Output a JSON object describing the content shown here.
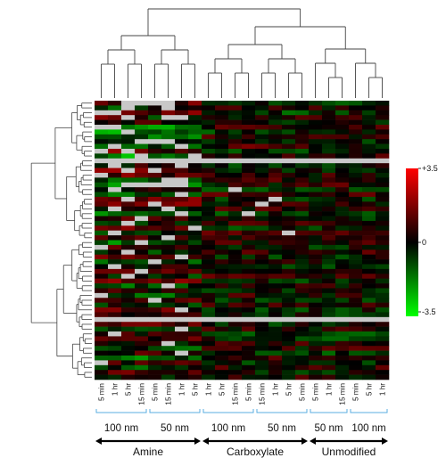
{
  "chart_data": {
    "type": "heatmap",
    "title": "",
    "n_rows": 58,
    "columns": [
      {
        "time": "5 min",
        "size": "100 nm",
        "surface": "Amine"
      },
      {
        "time": "1 hr",
        "size": "100 nm",
        "surface": "Amine"
      },
      {
        "time": "5 hr",
        "size": "100 nm",
        "surface": "Amine"
      },
      {
        "time": "15 min",
        "size": "100 nm",
        "surface": "Amine"
      },
      {
        "time": "5 min",
        "size": "50 nm",
        "surface": "Amine"
      },
      {
        "time": "15 min",
        "size": "50 nm",
        "surface": "Amine"
      },
      {
        "time": "1 hr",
        "size": "50 nm",
        "surface": "Amine"
      },
      {
        "time": "5 hr",
        "size": "50 nm",
        "surface": "Amine"
      },
      {
        "time": "1 hr",
        "size": "100 nm",
        "surface": "Carboxylate"
      },
      {
        "time": "5 hr",
        "size": "100 nm",
        "surface": "Carboxylate"
      },
      {
        "time": "15 min",
        "size": "100 nm",
        "surface": "Carboxylate"
      },
      {
        "time": "5 min",
        "size": "100 nm",
        "surface": "Carboxylate"
      },
      {
        "time": "15 min",
        "size": "50 nm",
        "surface": "Carboxylate"
      },
      {
        "time": "1 hr",
        "size": "50 nm",
        "surface": "Carboxylate"
      },
      {
        "time": "5 hr",
        "size": "50 nm",
        "surface": "Carboxylate"
      },
      {
        "time": "5 min",
        "size": "50 nm",
        "surface": "Carboxylate"
      },
      {
        "time": "5 min",
        "size": "50 nm",
        "surface": "Unmodified"
      },
      {
        "time": "1 hr",
        "size": "50 nm",
        "surface": "Unmodified"
      },
      {
        "time": "15 min",
        "size": "50 nm",
        "surface": "Unmodified"
      },
      {
        "time": "5 min",
        "size": "100 nm",
        "surface": "Unmodified"
      },
      {
        "time": "5 hr",
        "size": "100 nm",
        "surface": "Unmodified"
      },
      {
        "time": "1 hr",
        "size": "100 nm",
        "surface": "Unmodified"
      }
    ],
    "column_labels": [
      "5 min",
      "1 hr",
      "5 hr",
      "15 min",
      "5 min",
      "15 min",
      "1 hr",
      "5 hr",
      "1 hr",
      "5 hr",
      "15 min",
      "5 min",
      "15 min",
      "1 hr",
      "5 hr",
      "5 min",
      "5 min",
      "1 hr",
      "15 min",
      "5 min",
      "5 hr",
      "1 hr"
    ],
    "size_groups": [
      {
        "label": "100 nm",
        "start": 0,
        "end": 3
      },
      {
        "label": "50 nm",
        "start": 4,
        "end": 7
      },
      {
        "label": "100 nm",
        "start": 8,
        "end": 11
      },
      {
        "label": "50 nm",
        "start": 12,
        "end": 15
      },
      {
        "label": "50 nm",
        "start": 16,
        "end": 18
      },
      {
        "label": "100 nm",
        "start": 19,
        "end": 21
      }
    ],
    "surface_groups": [
      {
        "label": "Amine",
        "start": 0,
        "end": 7
      },
      {
        "label": "Carboxylate",
        "start": 8,
        "end": 15
      },
      {
        "label": "Unmodified",
        "start": 16,
        "end": 21
      }
    ],
    "colorscale": {
      "min": -3.5,
      "max": 3.5,
      "low_color": "#00ff00",
      "mid_color": "#000000",
      "high_color": "#ff0000",
      "missing_color": "#c8c8c8",
      "tick_labels": [
        "+3.5",
        "0",
        "-3.5"
      ]
    },
    "column_group_means": [
      {
        "from": 0,
        "to": 3,
        "values": [
          0.6,
          -0.8,
          1.8,
          1.2,
          0.4,
          -1.6,
          -2.0,
          -1.2,
          0.5,
          -0.9,
          1.5,
          -1.8,
          -0.6,
          0.3,
          1.6,
          1.3,
          -0.7,
          -1.4,
          0.2,
          -1.1,
          0.8,
          1.7,
          -0.4,
          -1.5,
          0.9,
          -0.3,
          1.1,
          -0.5,
          0.4,
          -1.3,
          0.6,
          -0.8,
          1.0,
          -1.2,
          0.3,
          0.7,
          -0.6,
          1.4,
          -0.9,
          0.5,
          -1.0,
          0.8,
          -0.4,
          1.2,
          0.6,
          -1.3,
          0.9,
          -0.7,
          0.4,
          1.1,
          -0.2,
          -0.8,
          0.5,
          -1.4,
          0.7,
          -0.9,
          1.0,
          -0.5
        ]
      },
      {
        "from": 4,
        "to": 7,
        "values": [
          0.9,
          -0.6,
          1.2,
          -1.4,
          0.3,
          -1.8,
          -1.6,
          -1.7,
          0.4,
          -0.7,
          0.8,
          -1.5,
          -0.5,
          0.6,
          1.1,
          0.9,
          -0.8,
          -1.2,
          0.5,
          -0.9,
          1.4,
          1.9,
          -0.6,
          -1.3,
          0.7,
          -0.2,
          0.9,
          -0.6,
          0.3,
          -1.1,
          0.4,
          -0.6,
          0.8,
          -1.0,
          0.2,
          1.6,
          -0.5,
          1.1,
          -0.7,
          0.4,
          -0.9,
          0.7,
          -0.3,
          1.0,
          0.5,
          -1.1,
          0.8,
          -0.6,
          0.3,
          0.9,
          -0.1,
          -0.7,
          0.4,
          -1.2,
          0.6,
          -0.8,
          0.9,
          -0.4
        ]
      },
      {
        "from": 8,
        "to": 15,
        "values": [
          -0.4,
          0.5,
          -0.6,
          0.3,
          -0.2,
          0.6,
          -0.5,
          0.4,
          -0.3,
          0.8,
          -0.4,
          0.3,
          0.2,
          -0.5,
          -0.3,
          0.4,
          0.6,
          0.2,
          -0.4,
          0.7,
          -0.2,
          0.3,
          0.5,
          -0.6,
          -0.1,
          0.4,
          -0.5,
          0.6,
          0.2,
          0.5,
          -0.3,
          0.7,
          -0.4,
          0.3,
          -0.5,
          0.4,
          0.6,
          -0.3,
          0.5,
          -0.2,
          0.4,
          -0.6,
          0.3,
          -0.4,
          -0.2,
          0.5,
          -0.3,
          0.4,
          -0.5,
          -0.3,
          0.6,
          0.2,
          -0.4,
          0.5,
          -0.3,
          0.4,
          -0.2,
          0.3
        ]
      },
      {
        "from": 16,
        "to": 21,
        "values": [
          -0.5,
          0.3,
          -0.4,
          0.2,
          -0.3,
          0.4,
          -0.2,
          0.3,
          -0.4,
          0.2,
          -0.3,
          0.5,
          0.4,
          -0.3,
          -0.2,
          0.3,
          0.5,
          0.6,
          -0.3,
          0.8,
          -0.4,
          0.2,
          0.3,
          -0.5,
          -0.2,
          0.3,
          -0.4,
          0.4,
          0.3,
          0.4,
          -0.2,
          0.5,
          -0.3,
          0.2,
          -0.6,
          0.3,
          0.4,
          -0.2,
          0.3,
          -0.4,
          0.2,
          -0.5,
          0.4,
          -0.3,
          -0.4,
          0.6,
          -0.2,
          0.3,
          -0.7,
          -0.5,
          0.3,
          0.5,
          -0.6,
          0.3,
          -0.4,
          0.5,
          -0.3,
          0.2
        ]
      }
    ],
    "missing_cells": [
      [
        0,
        2
      ],
      [
        0,
        3
      ],
      [
        0,
        4
      ],
      [
        0,
        5
      ],
      [
        1,
        2
      ],
      [
        1,
        5
      ],
      [
        2,
        0
      ],
      [
        2,
        1
      ],
      [
        3,
        2
      ],
      [
        3,
        5
      ],
      [
        3,
        6
      ],
      [
        5,
        0
      ],
      [
        5,
        1
      ],
      [
        6,
        2
      ],
      [
        8,
        3
      ],
      [
        8,
        4
      ],
      [
        8,
        5
      ],
      [
        9,
        1
      ],
      [
        9,
        6
      ],
      [
        10,
        0
      ],
      [
        10,
        2
      ],
      [
        11,
        3
      ],
      [
        11,
        7
      ],
      [
        12,
        5
      ],
      [
        13,
        1
      ],
      [
        13,
        6
      ],
      [
        14,
        2
      ],
      [
        14,
        4
      ],
      [
        15,
        0
      ],
      [
        16,
        5
      ],
      [
        16,
        6
      ],
      [
        17,
        2
      ],
      [
        17,
        3
      ],
      [
        17,
        4
      ],
      [
        17,
        5
      ],
      [
        17,
        6
      ],
      [
        18,
        1
      ],
      [
        18,
        10
      ],
      [
        19,
        6
      ],
      [
        20,
        2
      ],
      [
        20,
        13
      ],
      [
        21,
        4
      ],
      [
        21,
        12
      ],
      [
        22,
        1
      ],
      [
        22,
        5
      ],
      [
        23,
        6
      ],
      [
        23,
        11
      ],
      [
        24,
        3
      ],
      [
        25,
        2
      ],
      [
        26,
        7
      ],
      [
        27,
        1
      ],
      [
        27,
        14
      ],
      [
        28,
        5
      ],
      [
        29,
        3
      ],
      [
        30,
        0
      ],
      [
        31,
        2
      ],
      [
        32,
        6
      ],
      [
        33,
        4
      ],
      [
        34,
        1
      ],
      [
        35,
        3
      ],
      [
        36,
        2
      ],
      [
        38,
        5
      ],
      [
        40,
        0
      ],
      [
        41,
        4
      ],
      [
        43,
        6
      ],
      [
        45,
        2
      ],
      [
        47,
        6
      ],
      [
        48,
        1
      ],
      [
        50,
        5
      ],
      [
        52,
        6
      ],
      [
        54,
        0
      ]
    ],
    "missing_full_rows": [
      12,
      45
    ]
  }
}
